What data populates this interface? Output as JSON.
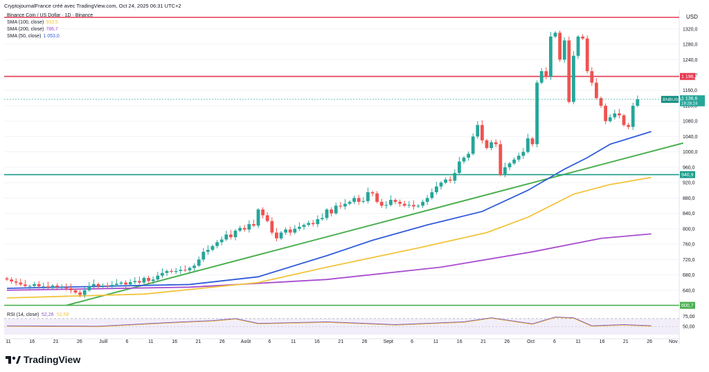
{
  "header": {
    "attribution": "CryptojournalFrance créé avec TradingView.com, Oct 24, 2025 06:31 UTC+2",
    "symbol_line": "Binance Coin / US Dollar · 1D · Binance"
  },
  "legend": [
    {
      "label": "SMA (100, close)",
      "value": "933,5",
      "color": "#f2c43a"
    },
    {
      "label": "SMA (200, close)",
      "value": "786,7",
      "color": "#a84ccf"
    },
    {
      "label": "SMA (50, close)",
      "value": "1 053,0",
      "color": "#2f5bd9"
    }
  ],
  "rsi": {
    "label": "RSI (14, close)",
    "value": "52,26",
    "ma_value": "52,59"
  },
  "brand": {
    "name": "TradingView"
  },
  "colors": {
    "up": "#26a69a",
    "down": "#ef5350",
    "sma50": "#2f5bd9",
    "sma100": "#f2c43a",
    "sma200": "#a84ccf",
    "trend": "#4caf50",
    "resistance": "#e53950",
    "support": "#1a9c8a"
  },
  "chart_data": {
    "type": "candlestick",
    "currency": "USD",
    "y_ticks": [
      640,
      680,
      720,
      760,
      800,
      840,
      880,
      920,
      960,
      1000,
      1040,
      1080,
      1120,
      1160,
      1200,
      1240,
      1280,
      1320
    ],
    "ylim": [
      600,
      1370
    ],
    "x_ticks": [
      "11",
      "16",
      "21",
      "26",
      "Juill",
      "6",
      "11",
      "16",
      "21",
      "26",
      "Août",
      "6",
      "11",
      "16",
      "21",
      "26",
      "Sept",
      "6",
      "11",
      "16",
      "21",
      "26",
      "Oct",
      "6",
      "11",
      "16",
      "21",
      "26",
      "Nov"
    ],
    "current_price": {
      "label": "BNBUSD",
      "value": "1 136,6",
      "countdown": "19:28:24"
    },
    "levels": [
      {
        "value": 1196.2,
        "label": "1 196,2",
        "kind": "resistance"
      },
      {
        "value": 940.9,
        "label": "940,9",
        "kind": "support"
      },
      {
        "value": 600.7,
        "label": "600,7",
        "kind": "trend-low"
      }
    ],
    "trendline": [
      {
        "day": 13,
        "price": 600.7
      },
      {
        "day": 148,
        "price": 1023
      }
    ],
    "candles_close": [
      668,
      663,
      660,
      655,
      651,
      651,
      656,
      650,
      650,
      647,
      652,
      648,
      648,
      645,
      640,
      634,
      628,
      640,
      651,
      656,
      650,
      652,
      651,
      654,
      657,
      660,
      655,
      661,
      664,
      660,
      672,
      664,
      668,
      678,
      685,
      690,
      688,
      690,
      693,
      692,
      698,
      704,
      720,
      740,
      745,
      755,
      765,
      772,
      785,
      778,
      795,
      802,
      798,
      812,
      808,
      850,
      835,
      820,
      790,
      775,
      790,
      798,
      790,
      800,
      805,
      810,
      815,
      812,
      825,
      828,
      850,
      840,
      860,
      858,
      865,
      870,
      880,
      870,
      872,
      895,
      892,
      870,
      860,
      862,
      875,
      870,
      865,
      860,
      862,
      858,
      860,
      870,
      880,
      895,
      910,
      920,
      928,
      925,
      945,
      975,
      985,
      995,
      1040,
      1070,
      1030,
      1010,
      1025,
      1020,
      940,
      960,
      970,
      980,
      990,
      1000,
      1035,
      1020,
      1180,
      1210,
      1195,
      1300,
      1310,
      1240,
      1290,
      1130,
      1250,
      1300,
      1295,
      1210,
      1180,
      1140,
      1120,
      1080,
      1090,
      1100,
      1095,
      1070,
      1065,
      1120,
      1136.6
    ],
    "sma50_points": [
      [
        0,
        645
      ],
      [
        20,
        650
      ],
      [
        40,
        655
      ],
      [
        55,
        675
      ],
      [
        70,
        730
      ],
      [
        80,
        770
      ],
      [
        92,
        810
      ],
      [
        104,
        845
      ],
      [
        114,
        900
      ],
      [
        122,
        955
      ],
      [
        127,
        985
      ],
      [
        132,
        1020
      ],
      [
        141,
        1053
      ]
    ],
    "sma100_points": [
      [
        0,
        620
      ],
      [
        30,
        630
      ],
      [
        55,
        660
      ],
      [
        70,
        700
      ],
      [
        90,
        750
      ],
      [
        105,
        790
      ],
      [
        114,
        830
      ],
      [
        124,
        890
      ],
      [
        132,
        915
      ],
      [
        141,
        933.5
      ]
    ],
    "sma200_points": [
      [
        0,
        640
      ],
      [
        40,
        648
      ],
      [
        70,
        668
      ],
      [
        95,
        700
      ],
      [
        115,
        740
      ],
      [
        130,
        775
      ],
      [
        141,
        786.7
      ]
    ],
    "rsi_range": [
      30,
      80
    ],
    "rsi_points": [
      [
        0,
        52
      ],
      [
        20,
        51
      ],
      [
        35,
        60
      ],
      [
        45,
        65
      ],
      [
        50,
        70
      ],
      [
        55,
        58
      ],
      [
        70,
        62
      ],
      [
        85,
        55
      ],
      [
        100,
        62
      ],
      [
        106,
        72
      ],
      [
        115,
        57
      ],
      [
        120,
        74
      ],
      [
        124,
        72
      ],
      [
        128,
        52
      ],
      [
        135,
        55
      ],
      [
        141,
        52.26
      ]
    ]
  }
}
